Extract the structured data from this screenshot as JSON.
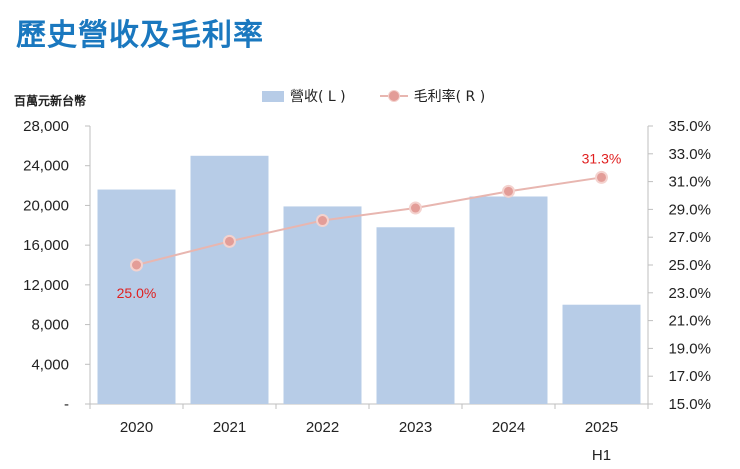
{
  "title": "歷史營收及毛利率",
  "unit_label": "百萬元新台幣",
  "legend": {
    "bar": "營收( L )",
    "line": "毛利率( R )"
  },
  "colors": {
    "bar": "#b7cce7",
    "line": "#e8b6b0",
    "marker": "#e39d98",
    "label": "#e02020",
    "title": "#1a78bf"
  },
  "chart_data": {
    "type": "bar",
    "title": "歷史營收及毛利率",
    "categories": [
      "2020",
      "2021",
      "2022",
      "2023",
      "2024",
      "2025"
    ],
    "category_sub": [
      "",
      "",
      "",
      "",
      "",
      "H1"
    ],
    "series": [
      {
        "name": "營收( L )",
        "type": "bar",
        "axis": "left",
        "values": [
          21600,
          25000,
          19900,
          17800,
          20900,
          10000
        ]
      },
      {
        "name": "毛利率( R )",
        "type": "line",
        "axis": "right",
        "values": [
          25.0,
          26.7,
          28.2,
          29.1,
          30.3,
          31.3
        ]
      }
    ],
    "y_left": {
      "ylim": [
        0,
        28000
      ],
      "ticks": [
        "-",
        "4,000",
        "8,000",
        "12,000",
        "16,000",
        "20,000",
        "24,000",
        "28,000"
      ]
    },
    "y_right": {
      "ylim": [
        15,
        35
      ],
      "ticks": [
        "15.0%",
        "17.0%",
        "19.0%",
        "21.0%",
        "23.0%",
        "25.0%",
        "27.0%",
        "29.0%",
        "31.0%",
        "33.0%",
        "35.0%"
      ]
    },
    "data_labels": [
      {
        "index": 0,
        "text": "25.0%",
        "position": "below"
      },
      {
        "index": 5,
        "text": "31.3%",
        "position": "above"
      }
    ]
  }
}
